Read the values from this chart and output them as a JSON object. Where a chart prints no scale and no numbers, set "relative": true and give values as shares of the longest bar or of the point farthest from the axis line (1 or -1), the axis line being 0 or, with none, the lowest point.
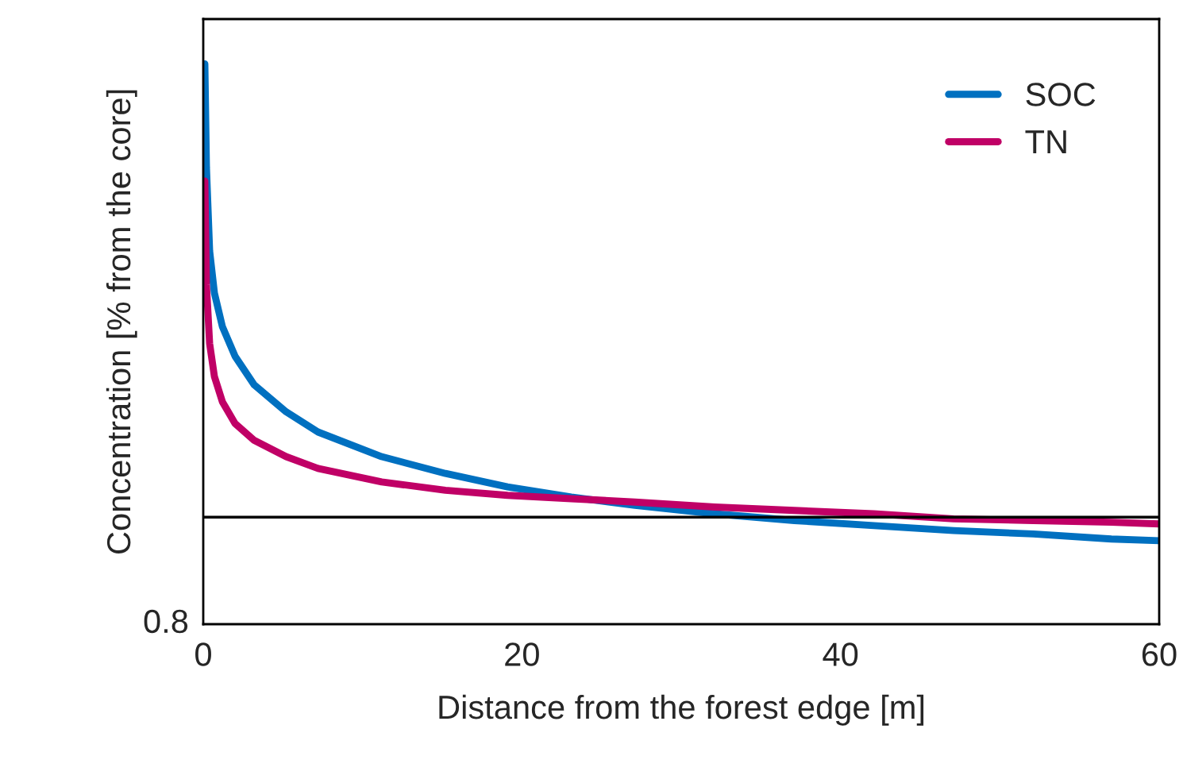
{
  "chart_data": {
    "type": "line",
    "relative": true,
    "xlabel": "Distance from the forest edge [m]",
    "ylabel": "Concentration [% from the core]",
    "xlim": [
      0,
      60
    ],
    "xticks": [
      0,
      20,
      40,
      60
    ],
    "grid": false,
    "legend": "top right",
    "marker": "none",
    "line_style": "solid",
    "x": [
      0.1,
      0.2,
      0.4,
      0.7,
      1.2,
      2.0,
      3.2,
      5.2,
      7.2,
      11.2,
      15.2,
      19.1,
      23.1,
      27.1,
      32.1,
      37.1,
      42.1,
      47.1,
      52.1,
      57.0,
      60
    ],
    "series": [
      {
        "name": "SOC",
        "color": "#0070c0",
        "values": [
          1.0,
          0.815,
          0.666,
          0.591,
          0.531,
          0.478,
          0.427,
          0.379,
          0.343,
          0.299,
          0.269,
          0.245,
          0.227,
          0.212,
          0.197,
          0.185,
          0.176,
          0.167,
          0.161,
          0.152,
          0.149
        ]
      },
      {
        "name": "TN",
        "color": "#c00066",
        "values": [
          0.791,
          0.606,
          0.501,
          0.442,
          0.397,
          0.358,
          0.328,
          0.299,
          0.278,
          0.254,
          0.239,
          0.23,
          0.224,
          0.218,
          0.209,
          0.203,
          0.197,
          0.188,
          0.185,
          0.182,
          0.179
        ]
      }
    ],
    "ref_lines": [
      {
        "axis": "y",
        "value": 0.191,
        "color": "#000000"
      }
    ],
    "annotations": [
      "0.8"
    ]
  }
}
